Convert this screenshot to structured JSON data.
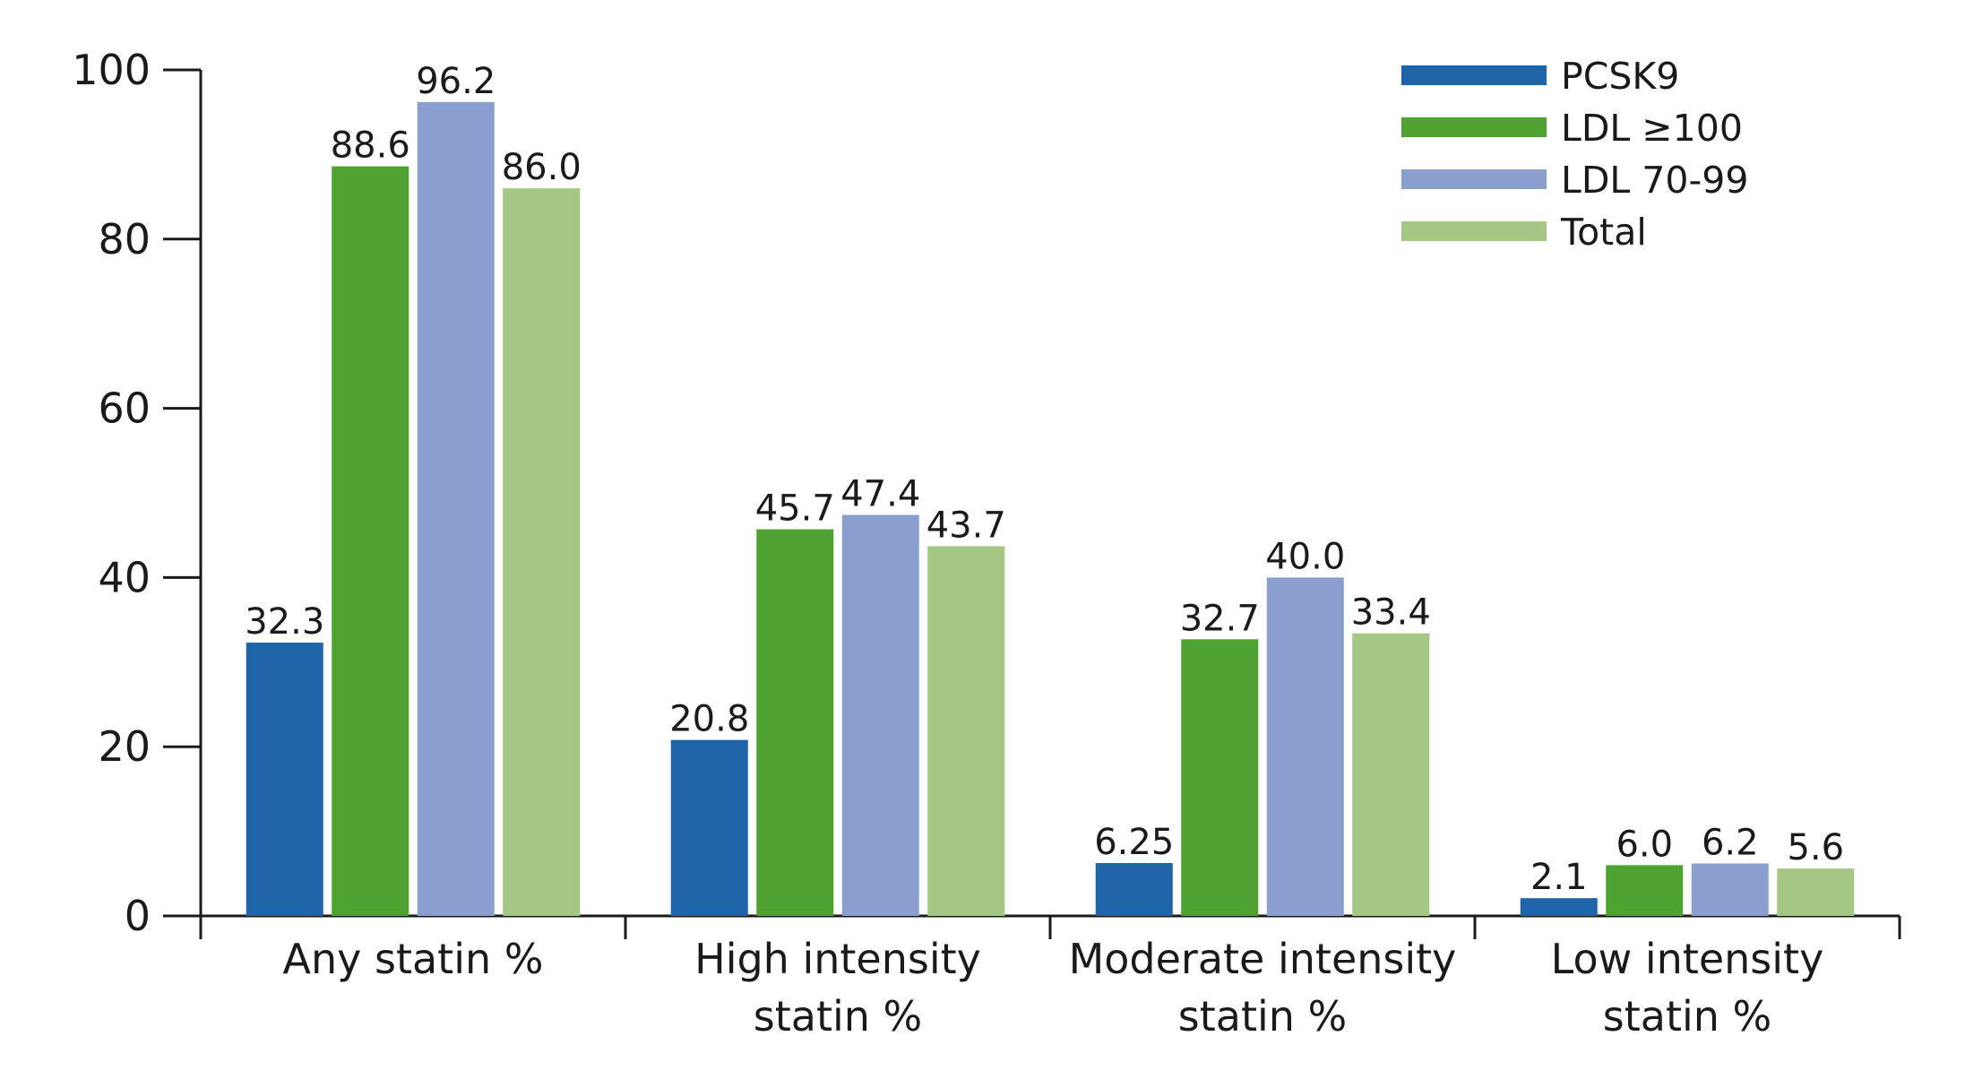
{
  "chart_data": {
    "type": "bar",
    "title": "",
    "xlabel": "",
    "ylabel": "",
    "ylim": [
      0,
      100
    ],
    "yticks": [
      0,
      20,
      40,
      60,
      80,
      100
    ],
    "categories": [
      [
        "Any statin %"
      ],
      [
        "High intensity",
        "statin %"
      ],
      [
        "Moderate intensity",
        "statin %"
      ],
      [
        "Low intensity",
        "statin %"
      ]
    ],
    "series": [
      {
        "name": "PCSK9",
        "color": "#1f64a9",
        "values": [
          32.3,
          20.8,
          6.25,
          2.1
        ],
        "labels": [
          "32.3",
          "20.8",
          "6.25",
          "2.1"
        ]
      },
      {
        "name": "LDL ≥100",
        "color": "#4ea22f",
        "values": [
          88.6,
          45.7,
          32.7,
          6.0
        ],
        "labels": [
          "88.6",
          "45.7",
          "32.7",
          "6.0"
        ]
      },
      {
        "name": "LDL 70-99",
        "color": "#8a9fcd",
        "values": [
          96.2,
          47.4,
          40.0,
          6.2
        ],
        "labels": [
          "96.2",
          "47.4",
          "40.0",
          "6.2"
        ]
      },
      {
        "name": "Total",
        "color": "#a4c783",
        "values": [
          86.0,
          43.7,
          33.4,
          5.6
        ],
        "labels": [
          "86.0",
          "43.7",
          "33.4",
          "5.6"
        ]
      }
    ],
    "legend": "top-right",
    "grid": false
  }
}
